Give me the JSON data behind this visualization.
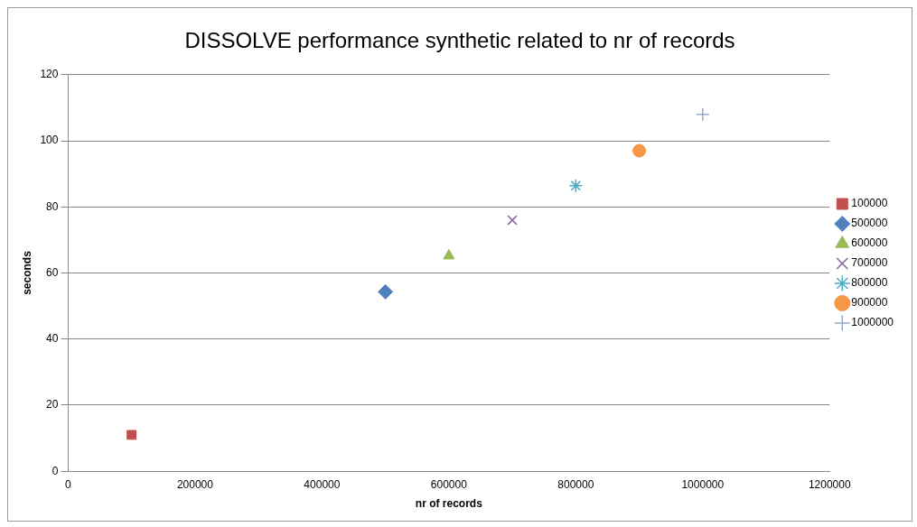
{
  "chart_data": {
    "type": "scatter",
    "title": "DISSOLVE performance synthetic related to nr of records",
    "xlabel": "nr of records",
    "ylabel": "seconds",
    "xlim": [
      0,
      1200000
    ],
    "xticks": [
      0,
      200000,
      400000,
      600000,
      800000,
      1000000,
      1200000
    ],
    "ylim": [
      0,
      120
    ],
    "yticks": [
      0,
      20,
      40,
      60,
      80,
      100,
      120
    ],
    "grid": "y",
    "legend": "right",
    "series": [
      {
        "name": "100000",
        "color": "#c0504d",
        "marker": "square",
        "x": [
          100000
        ],
        "values": [
          11
        ]
      },
      {
        "name": "500000",
        "color": "#4f81bd",
        "marker": "diamond",
        "x": [
          500000
        ],
        "values": [
          54.3
        ]
      },
      {
        "name": "600000",
        "color": "#9bbb59",
        "marker": "triangle",
        "x": [
          600000
        ],
        "values": [
          65.2
        ]
      },
      {
        "name": "700000",
        "color": "#8064a2",
        "marker": "cross",
        "x": [
          700000
        ],
        "values": [
          76
        ]
      },
      {
        "name": "800000",
        "color": "#4bacc6",
        "x": [
          800000
        ],
        "values": [
          86.4
        ]
      },
      {
        "name": "900000",
        "color": "#f79646",
        "marker": "circle",
        "x": [
          900000
        ],
        "values": [
          97
        ]
      },
      {
        "name": "1000000",
        "color": "#93a9cf",
        "x": [
          1000000
        ],
        "values": [
          108
        ]
      }
    ]
  }
}
